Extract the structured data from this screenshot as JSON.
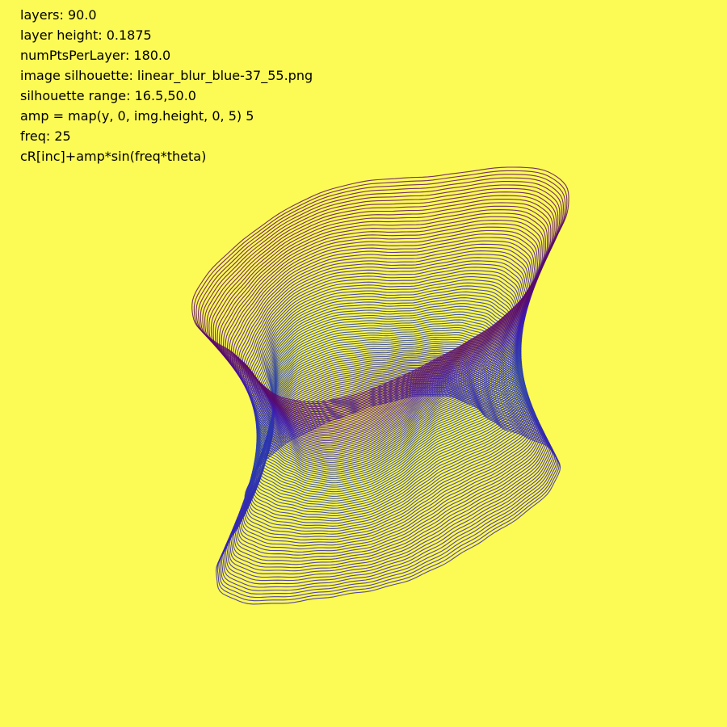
{
  "params": [
    "layers: 90.0",
    "layer height: 0.1875",
    "numPtsPerLayer: 180.0",
    "image silhouette: linear_blur_blue-37_55.png",
    "silhouette range: 16.5,50.0",
    "amp = map(y, 0, img.height, 0, 5) 5",
    "freq: 25",
    "cR[inc]+amp*sin(freq*theta)"
  ],
  "colors": {
    "background": "#fcfa55",
    "text": "#000000",
    "gradient": [
      "#2e8a7a",
      "#2a35b0",
      "#3f18b5",
      "#5a0a6a"
    ]
  },
  "render": {
    "layers": 90,
    "pts_per_layer": 180,
    "freq": 25
  }
}
